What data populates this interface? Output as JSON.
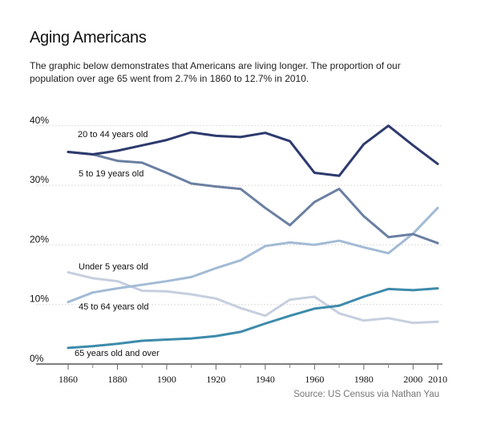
{
  "header": {
    "title": "Aging Americans",
    "subtitle": "The graphic below demonstrates that Americans are living longer. The proportion of our population over age 65 went from 2.7% in 1860 to 12.7% in 2010."
  },
  "source": "Source:  US Census via Nathan Yau",
  "chart_data": {
    "type": "line",
    "title": "Aging Americans",
    "xlabel": "",
    "ylabel": "",
    "x": [
      1860,
      1870,
      1880,
      1890,
      1900,
      1910,
      1920,
      1930,
      1940,
      1950,
      1960,
      1970,
      1980,
      1990,
      2000,
      2010
    ],
    "xticks": [
      1860,
      1880,
      1900,
      1920,
      1940,
      1960,
      1980,
      2000,
      2010
    ],
    "xminor": [
      1870,
      1890,
      1910,
      1930,
      1950,
      1970,
      1990
    ],
    "xlim": [
      1852,
      2012
    ],
    "ylim": [
      0,
      40
    ],
    "yticks": [
      0,
      10,
      20,
      30,
      40
    ],
    "ytick_labels": [
      "0%",
      "10%",
      "20%",
      "30%",
      "40%"
    ],
    "grid": true,
    "series": [
      {
        "name": "20 to 44 years old",
        "color": "#2d3a6e",
        "values": [
          35.6,
          35.2,
          35.8,
          36.7,
          37.6,
          38.9,
          38.3,
          38.1,
          38.8,
          37.4,
          32.1,
          31.6,
          36.9,
          40.0,
          36.7,
          33.6
        ]
      },
      {
        "name": "5 to 19 years old",
        "color": "#6a7fa2",
        "values": [
          35.6,
          35.2,
          34.1,
          33.8,
          32.1,
          30.3,
          29.8,
          29.4,
          26.2,
          23.3,
          27.2,
          29.4,
          24.8,
          21.3,
          21.8,
          20.3
        ]
      },
      {
        "name": "45 to 64 years old",
        "color": "#a2bbd5",
        "values": [
          10.4,
          12.0,
          12.7,
          13.3,
          13.9,
          14.6,
          16.1,
          17.4,
          19.8,
          20.4,
          20.0,
          20.7,
          19.6,
          18.6,
          21.9,
          26.2
        ]
      },
      {
        "name": "Under 5 years old",
        "color": "#c6cfdf",
        "values": [
          15.4,
          14.4,
          13.9,
          12.3,
          12.2,
          11.7,
          11.0,
          9.4,
          8.1,
          10.8,
          11.3,
          8.5,
          7.3,
          7.7,
          6.9,
          7.1
        ]
      },
      {
        "name": "65 years old and over",
        "color": "#3d8bab",
        "values": [
          2.7,
          3.0,
          3.4,
          3.9,
          4.1,
          4.3,
          4.7,
          5.4,
          6.8,
          8.1,
          9.3,
          9.8,
          11.3,
          12.6,
          12.4,
          12.7
        ]
      }
    ],
    "annotations": [
      {
        "text": "20 to 44 years old",
        "series": 0
      },
      {
        "text": "5 to 19 years old",
        "series": 1
      },
      {
        "text": "Under 5 years old",
        "series": 3
      },
      {
        "text": "45 to 64 years old",
        "series": 2
      },
      {
        "text": "65 years old and over",
        "series": 4
      }
    ],
    "legend": "none (inline labels)"
  }
}
